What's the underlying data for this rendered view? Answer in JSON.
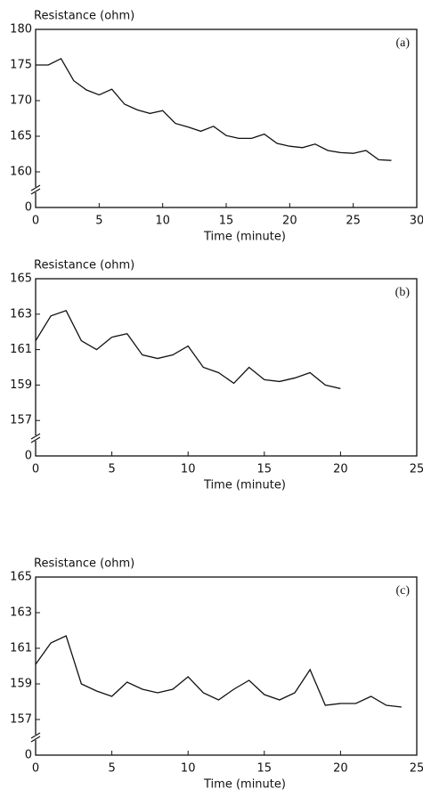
{
  "chart_data": [
    {
      "type": "line",
      "y_label": "Resistance (ohm)",
      "x_label": "Time (minute)",
      "annotation": "(a)",
      "x": [
        0,
        1,
        2,
        3,
        4,
        5,
        6,
        7,
        8,
        9,
        10,
        11,
        12,
        13,
        14,
        15,
        16,
        17,
        18,
        19,
        20,
        21,
        22,
        23,
        24,
        25,
        26,
        27,
        28
      ],
      "values": [
        175,
        175,
        175.9,
        172.8,
        171.5,
        170.8,
        171.6,
        169.5,
        168.7,
        168.2,
        168.6,
        166.8,
        166.3,
        165.7,
        166.4,
        165.1,
        164.7,
        164.7,
        165.3,
        164,
        163.6,
        163.4,
        163.9,
        163,
        162.7,
        162.6,
        163,
        161.7,
        161.6
      ],
      "color": "#111111",
      "xlim": [
        0,
        30
      ],
      "xticks": [
        0,
        5,
        10,
        15,
        20,
        25,
        30
      ],
      "ylim": [
        0,
        180
      ],
      "yticks": [
        0,
        160,
        165,
        170,
        175,
        180
      ],
      "y_break": true
    },
    {
      "type": "line",
      "y_label": "Resistance (ohm)",
      "x_label": "Time (minute)",
      "annotation": "(b)",
      "x": [
        0,
        1,
        2,
        3,
        4,
        5,
        6,
        7,
        8,
        9,
        10,
        11,
        12,
        13,
        14,
        15,
        16,
        17,
        18,
        19,
        20
      ],
      "values": [
        161.5,
        162.9,
        163.2,
        161.5,
        161,
        161.7,
        161.9,
        160.7,
        160.5,
        160.7,
        161.2,
        160,
        159.7,
        159.1,
        160,
        159.3,
        159.2,
        159.4,
        159.7,
        159,
        158.8
      ],
      "color": "#111111",
      "xlim": [
        0,
        25
      ],
      "xticks": [
        0,
        5,
        10,
        15,
        20,
        25
      ],
      "ylim": [
        0,
        165
      ],
      "yticks": [
        0,
        157,
        159,
        161,
        163,
        165
      ],
      "y_break": true
    },
    {
      "type": "line",
      "y_label": "Resistance (ohm)",
      "x_label": "Time (minute)",
      "annotation": "(c)",
      "x": [
        0,
        1,
        2,
        3,
        4,
        5,
        6,
        7,
        8,
        9,
        10,
        11,
        12,
        13,
        14,
        15,
        16,
        17,
        18,
        19,
        20,
        21,
        22,
        23,
        24
      ],
      "values": [
        160.1,
        161.3,
        161.7,
        159,
        158.6,
        158.3,
        159.1,
        158.7,
        158.5,
        158.7,
        159.4,
        158.5,
        158.1,
        158.7,
        159.2,
        158.4,
        158.1,
        158.5,
        159.8,
        157.8,
        157.9,
        157.9,
        158.3,
        157.8,
        157.7
      ],
      "color": "#111111",
      "xlim": [
        0,
        25
      ],
      "xticks": [
        0,
        5,
        10,
        15,
        20,
        25
      ],
      "ylim": [
        0,
        165
      ],
      "yticks": [
        0,
        157,
        159,
        161,
        163,
        165
      ],
      "y_break": true
    }
  ]
}
